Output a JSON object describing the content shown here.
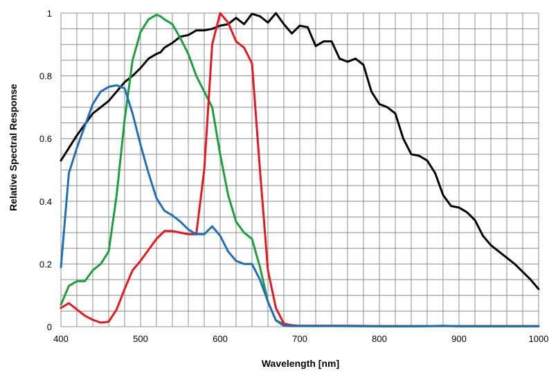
{
  "chart_data": {
    "type": "line",
    "title": "",
    "xlabel": "Wavelength [nm]",
    "ylabel": "Relative Spectral Response",
    "xlim": [
      400,
      1000
    ],
    "ylim": [
      0,
      1
    ],
    "x_ticks": [
      400,
      500,
      600,
      700,
      800,
      900,
      1000
    ],
    "x_tick_labels": [
      "400",
      "500",
      "600",
      "700",
      "800",
      "900",
      "1000"
    ],
    "y_ticks": [
      0,
      0.2,
      0.4,
      0.6,
      0.8,
      1
    ],
    "y_tick_labels": [
      "0",
      "0.2",
      "0.4",
      "0.6",
      "0.8",
      "1"
    ],
    "grid": true,
    "legend": "none",
    "series": [
      {
        "color": "#000000",
        "x": [
          400,
          410,
          420,
          430,
          440,
          450,
          460,
          470,
          480,
          490,
          500,
          510,
          520,
          525,
          530,
          540,
          550,
          560,
          570,
          580,
          590,
          600,
          610,
          620,
          630,
          640,
          650,
          660,
          670,
          680,
          690,
          700,
          710,
          720,
          730,
          740,
          750,
          760,
          770,
          780,
          790,
          800,
          810,
          820,
          830,
          840,
          850,
          860,
          870,
          880,
          890,
          900,
          910,
          920,
          930,
          940,
          950,
          960,
          970,
          980,
          990,
          1000
        ],
        "y": [
          0.53,
          0.57,
          0.61,
          0.645,
          0.68,
          0.7,
          0.72,
          0.75,
          0.78,
          0.8,
          0.825,
          0.855,
          0.87,
          0.875,
          0.89,
          0.905,
          0.925,
          0.93,
          0.945,
          0.945,
          0.95,
          0.96,
          0.965,
          0.985,
          0.965,
          0.998,
          0.99,
          0.97,
          1.0,
          0.965,
          0.935,
          0.96,
          0.955,
          0.895,
          0.91,
          0.91,
          0.855,
          0.845,
          0.855,
          0.835,
          0.75,
          0.71,
          0.7,
          0.68,
          0.6,
          0.55,
          0.545,
          0.53,
          0.49,
          0.42,
          0.385,
          0.38,
          0.365,
          0.34,
          0.29,
          0.26,
          0.24,
          0.22,
          0.2,
          0.175,
          0.15,
          0.12
        ]
      },
      {
        "color": "#1b9e3e",
        "x": [
          400,
          410,
          420,
          430,
          440,
          450,
          460,
          470,
          480,
          490,
          500,
          510,
          520,
          525,
          530,
          540,
          550,
          560,
          570,
          580,
          590,
          600,
          610,
          620,
          630,
          640,
          650,
          660,
          670,
          680,
          690,
          700,
          750,
          800,
          850,
          900,
          950,
          1000
        ],
        "y": [
          0.07,
          0.13,
          0.145,
          0.145,
          0.18,
          0.2,
          0.24,
          0.42,
          0.66,
          0.85,
          0.94,
          0.98,
          0.995,
          0.99,
          0.98,
          0.965,
          0.92,
          0.87,
          0.8,
          0.75,
          0.7,
          0.55,
          0.42,
          0.335,
          0.3,
          0.28,
          0.19,
          0.08,
          0.02,
          0.008,
          0.005,
          0.003,
          0.003,
          0.002,
          0.002,
          0.002,
          0.002,
          0.002
        ]
      },
      {
        "color": "#e3191f",
        "x": [
          400,
          410,
          420,
          430,
          440,
          450,
          460,
          470,
          480,
          490,
          500,
          510,
          520,
          530,
          540,
          550,
          560,
          570,
          580,
          590,
          600,
          610,
          620,
          630,
          640,
          650,
          660,
          670,
          680,
          690,
          700,
          750,
          800,
          850,
          900,
          950,
          1000
        ],
        "y": [
          0.06,
          0.075,
          0.055,
          0.035,
          0.022,
          0.013,
          0.016,
          0.055,
          0.12,
          0.18,
          0.21,
          0.245,
          0.28,
          0.305,
          0.305,
          0.3,
          0.295,
          0.295,
          0.5,
          0.9,
          1.0,
          0.97,
          0.91,
          0.89,
          0.84,
          0.5,
          0.18,
          0.06,
          0.01,
          0.004,
          0.003,
          0.003,
          0.002,
          0.002,
          0.002,
          0.002,
          0.002
        ]
      },
      {
        "color": "#1f6fb5",
        "x": [
          400,
          410,
          420,
          430,
          440,
          450,
          460,
          470,
          480,
          490,
          500,
          510,
          520,
          530,
          540,
          550,
          560,
          570,
          580,
          590,
          600,
          610,
          620,
          630,
          640,
          650,
          660,
          670,
          680,
          690,
          700,
          750,
          800,
          850,
          880,
          900,
          950,
          1000
        ],
        "y": [
          0.19,
          0.49,
          0.57,
          0.64,
          0.71,
          0.75,
          0.765,
          0.77,
          0.76,
          0.68,
          0.58,
          0.49,
          0.41,
          0.37,
          0.355,
          0.335,
          0.31,
          0.295,
          0.295,
          0.32,
          0.29,
          0.24,
          0.21,
          0.2,
          0.2,
          0.15,
          0.08,
          0.02,
          0.003,
          0.002,
          0.002,
          0.002,
          0.001,
          0.001,
          0.003,
          0.001,
          0.001,
          0.001
        ]
      }
    ]
  }
}
